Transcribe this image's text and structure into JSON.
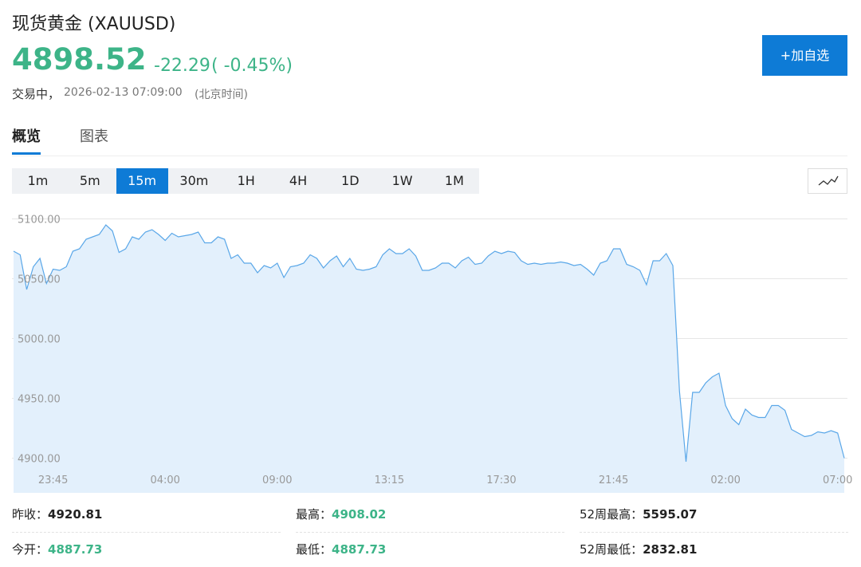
{
  "header": {
    "title": "现货黄金 (XAUUSD)",
    "price": "4898.52",
    "change": "-22.29",
    "change_pct": "( -0.45%)",
    "status": "交易中，",
    "time": "2026-02-13 07:09:00",
    "timezone": "(北京时间)",
    "add_button": "+加自选",
    "up_color": "#3db488"
  },
  "tabs": {
    "items": [
      "概览",
      "图表"
    ],
    "active": 0
  },
  "intervals": {
    "items": [
      "1m",
      "5m",
      "15m",
      "30m",
      "1H",
      "4H",
      "1D",
      "1W",
      "1M"
    ],
    "active": 2
  },
  "chart_data": {
    "type": "line",
    "color": "#5aa7e8",
    "fill": "#e3f0fc",
    "grid": true,
    "categories": [
      null,
      null,
      null,
      null,
      null,
      null,
      "23:45",
      null,
      null,
      null,
      null,
      null,
      null,
      null,
      null,
      null,
      null,
      null,
      null,
      null,
      null,
      null,
      null,
      "04:00",
      null,
      null,
      null,
      null,
      null,
      null,
      null,
      null,
      null,
      null,
      null,
      null,
      null,
      null,
      null,
      null,
      "09:00",
      null,
      null,
      null,
      null,
      null,
      null,
      null,
      null,
      null,
      null,
      null,
      null,
      null,
      null,
      null,
      null,
      "13:15",
      null,
      null,
      null,
      null,
      null,
      null,
      null,
      null,
      null,
      null,
      null,
      null,
      null,
      null,
      null,
      null,
      "17:30",
      null,
      null,
      null,
      null,
      null,
      null,
      null,
      null,
      null,
      null,
      null,
      null,
      null,
      null,
      null,
      null,
      "21:45",
      null,
      null,
      null,
      null,
      null,
      null,
      null,
      null,
      null,
      null,
      null,
      null,
      null,
      null,
      null,
      null,
      "02:00",
      null,
      null,
      null,
      null,
      null,
      null,
      null,
      null,
      null,
      null,
      null,
      null,
      null,
      null,
      null,
      null,
      "07:00",
      null
    ],
    "values": [
      5073,
      5070,
      5041,
      5060,
      5067,
      5046,
      5058,
      5057,
      5060,
      5073,
      5075,
      5083,
      5085,
      5087,
      5095,
      5090,
      5072,
      5075,
      5085,
      5083,
      5089,
      5091,
      5087,
      5082,
      5088,
      5085,
      5086,
      5087,
      5089,
      5080,
      5080,
      5085,
      5083,
      5067,
      5070,
      5063,
      5063,
      5055,
      5061,
      5059,
      5063,
      5051,
      5060,
      5061,
      5063,
      5070,
      5067,
      5059,
      5065,
      5069,
      5060,
      5067,
      5058,
      5057,
      5058,
      5060,
      5070,
      5075,
      5071,
      5071,
      5075,
      5069,
      5057,
      5057,
      5059,
      5063,
      5063,
      5059,
      5065,
      5068,
      5062,
      5063,
      5069,
      5073,
      5071,
      5073,
      5072,
      5065,
      5062,
      5063,
      5062,
      5063,
      5063,
      5064,
      5063,
      5061,
      5062,
      5058,
      5053,
      5063,
      5065,
      5075,
      5075,
      5062,
      5060,
      5057,
      5045,
      5065,
      5065,
      5071,
      5061,
      4956,
      4897,
      4955,
      4955,
      4963,
      4968,
      4971,
      4944,
      4933,
      4928,
      4941,
      4936,
      4934,
      4934,
      4944,
      4944,
      4940,
      4924,
      4921,
      4918,
      4919,
      4922,
      4921,
      4923,
      4921,
      4900
    ],
    "ylim": [
      4871,
      5111
    ],
    "yticks": [
      {
        "value": 4900,
        "label": "4900.00"
      },
      {
        "value": 4950,
        "label": "4950.00"
      },
      {
        "value": 5000,
        "label": "5000.00"
      },
      {
        "value": 5050,
        "label": "5050.00"
      },
      {
        "value": 5100,
        "label": "5100.00"
      }
    ]
  },
  "stats": [
    {
      "label": "昨收：",
      "value": "4920.81",
      "color": "#222222"
    },
    {
      "label": "最高：",
      "value": "4908.02",
      "color": "#3db488"
    },
    {
      "label": "52周最高：",
      "value": "5595.07",
      "color": "#222222"
    },
    {
      "label": "今开：",
      "value": "4887.73",
      "color": "#3db488"
    },
    {
      "label": "最低：",
      "value": "4887.73",
      "color": "#3db488"
    },
    {
      "label": "52周最低：",
      "value": "2832.81",
      "color": "#222222"
    }
  ]
}
